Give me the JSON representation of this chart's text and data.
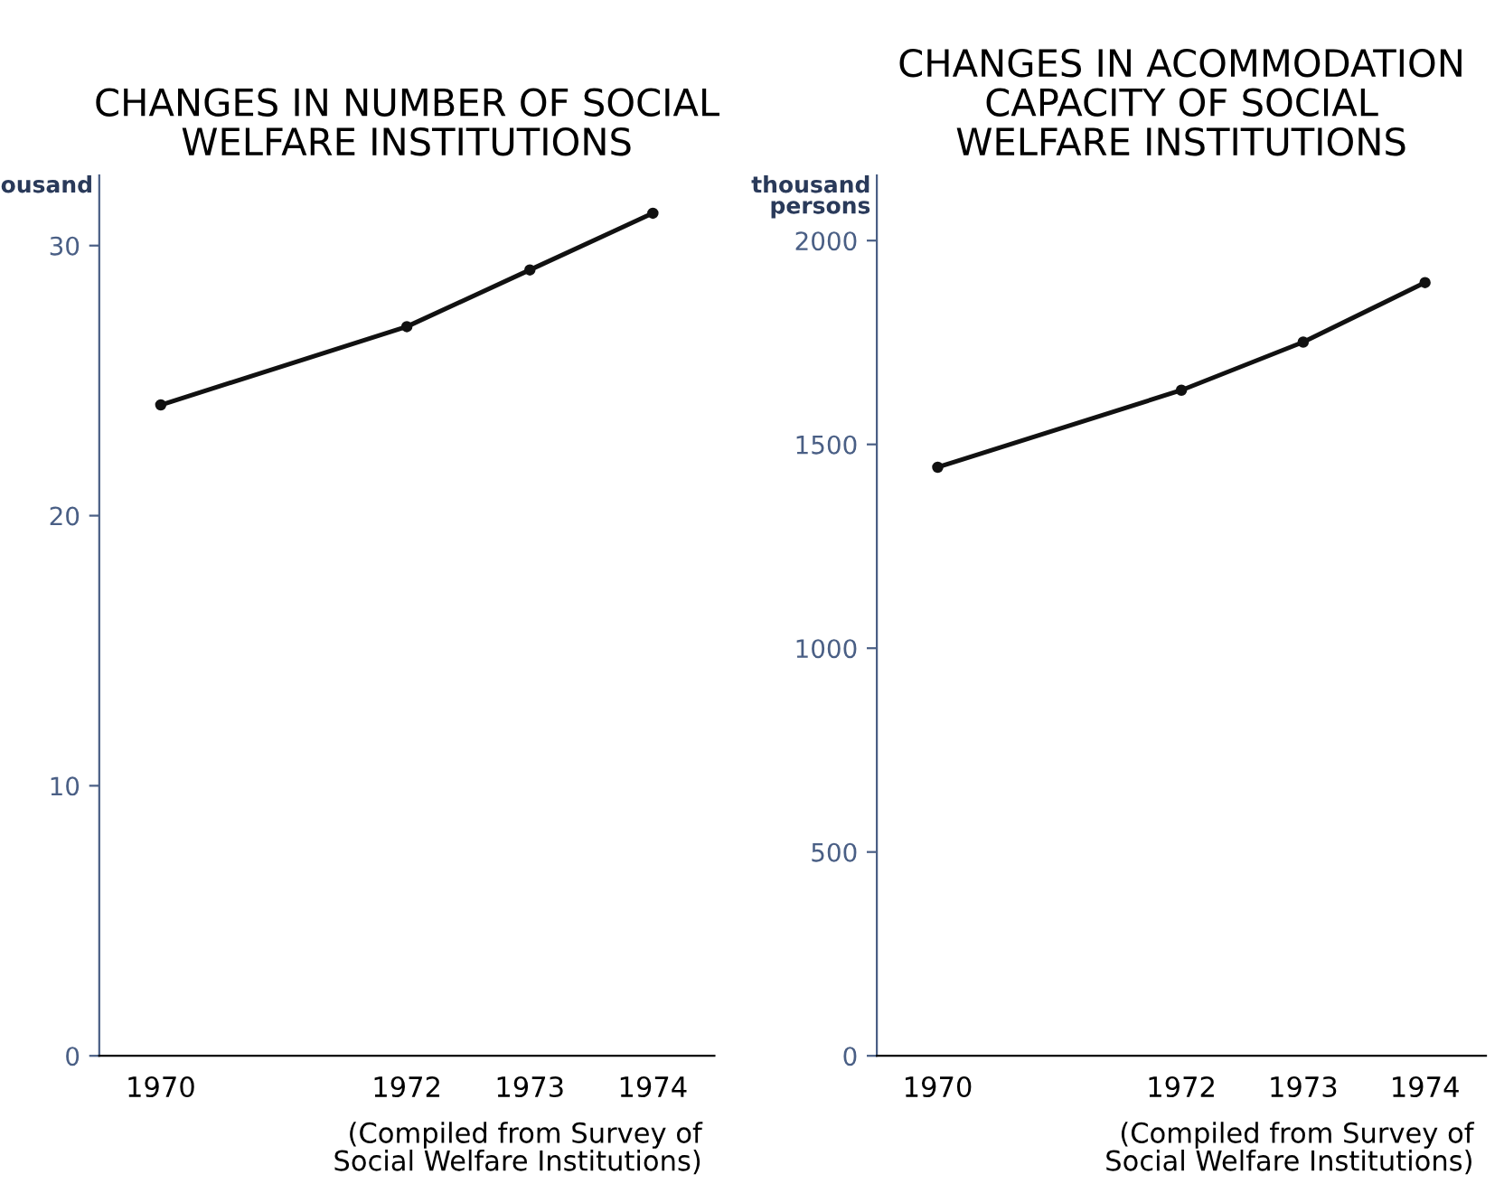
{
  "chart_data": [
    {
      "type": "line",
      "title": "CHANGES IN NUMBER OF SOCIAL\nWELFARE INSTITUTIONS",
      "ylabel": "ousand",
      "x": [
        1970,
        1972,
        1973,
        1974
      ],
      "series": [
        {
          "color": "#111111",
          "values": [
            24.1,
            27.0,
            29.1,
            31.2
          ]
        }
      ],
      "xlim": [
        1969.5,
        1974.5
      ],
      "xticks": [
        1970,
        1972,
        1973,
        1974
      ],
      "ylim": [
        0,
        32.6
      ],
      "yticks": [
        0,
        10,
        20,
        30
      ],
      "marker": "circle",
      "line_style": "solid",
      "grid": false,
      "legend": false,
      "annotations": [
        "(Compiled from Survey of\nSocial Welfare Institutions)"
      ]
    },
    {
      "type": "line",
      "title": "CHANGES IN ACOMMODATION\nCAPACITY OF SOCIAL\nWELFARE INSTITUTIONS",
      "ylabel": "thousand\npersons",
      "x": [
        1970,
        1972,
        1973,
        1974
      ],
      "series": [
        {
          "color": "#111111",
          "values": [
            1444,
            1633,
            1751,
            1897
          ]
        }
      ],
      "xlim": [
        1969.5,
        1974.5
      ],
      "xticks": [
        1970,
        1972,
        1973,
        1974
      ],
      "ylim": [
        0,
        2160
      ],
      "yticks": [
        0,
        500,
        1000,
        1500,
        2000
      ],
      "marker": "circle",
      "line_style": "solid",
      "grid": false,
      "legend": false,
      "annotations": [
        "(Compiled from Survey of\nSocial Welfare Institutions)"
      ]
    }
  ]
}
